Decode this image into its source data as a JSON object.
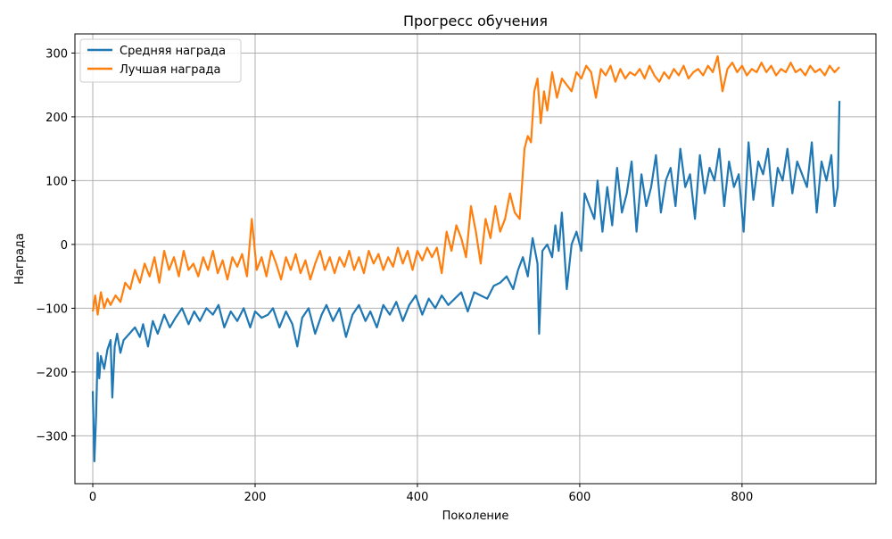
{
  "chart_data": {
    "type": "line",
    "title": "Прогресс обучения",
    "xlabel": "Поколение",
    "ylabel": "Награда",
    "xlim": [
      -22,
      965
    ],
    "ylim": [
      -375,
      330
    ],
    "xticks": [
      0,
      200,
      400,
      600,
      800
    ],
    "yticks": [
      -300,
      -200,
      -100,
      0,
      100,
      200,
      300
    ],
    "grid": true,
    "legend_position": "top-left",
    "series": [
      {
        "name": "Средняя награда",
        "color": "#1f77b4",
        "points": [
          [
            0,
            -230
          ],
          [
            2,
            -340
          ],
          [
            4,
            -270
          ],
          [
            6,
            -170
          ],
          [
            8,
            -210
          ],
          [
            10,
            -175
          ],
          [
            14,
            -195
          ],
          [
            18,
            -165
          ],
          [
            22,
            -150
          ],
          [
            24,
            -240
          ],
          [
            27,
            -160
          ],
          [
            30,
            -140
          ],
          [
            34,
            -170
          ],
          [
            38,
            -150
          ],
          [
            45,
            -140
          ],
          [
            52,
            -130
          ],
          [
            58,
            -145
          ],
          [
            62,
            -125
          ],
          [
            68,
            -160
          ],
          [
            74,
            -120
          ],
          [
            80,
            -140
          ],
          [
            88,
            -110
          ],
          [
            95,
            -130
          ],
          [
            102,
            -115
          ],
          [
            110,
            -100
          ],
          [
            118,
            -125
          ],
          [
            125,
            -105
          ],
          [
            132,
            -120
          ],
          [
            140,
            -100
          ],
          [
            148,
            -110
          ],
          [
            155,
            -95
          ],
          [
            162,
            -130
          ],
          [
            170,
            -105
          ],
          [
            178,
            -120
          ],
          [
            186,
            -100
          ],
          [
            194,
            -130
          ],
          [
            200,
            -105
          ],
          [
            208,
            -115
          ],
          [
            216,
            -110
          ],
          [
            222,
            -100
          ],
          [
            230,
            -130
          ],
          [
            238,
            -105
          ],
          [
            246,
            -125
          ],
          [
            252,
            -160
          ],
          [
            258,
            -115
          ],
          [
            266,
            -100
          ],
          [
            274,
            -140
          ],
          [
            282,
            -110
          ],
          [
            288,
            -95
          ],
          [
            296,
            -120
          ],
          [
            304,
            -100
          ],
          [
            312,
            -145
          ],
          [
            320,
            -110
          ],
          [
            328,
            -95
          ],
          [
            336,
            -120
          ],
          [
            342,
            -105
          ],
          [
            350,
            -130
          ],
          [
            358,
            -95
          ],
          [
            366,
            -110
          ],
          [
            374,
            -90
          ],
          [
            382,
            -120
          ],
          [
            390,
            -95
          ],
          [
            398,
            -80
          ],
          [
            406,
            -110
          ],
          [
            414,
            -85
          ],
          [
            422,
            -100
          ],
          [
            430,
            -80
          ],
          [
            438,
            -95
          ],
          [
            446,
            -85
          ],
          [
            454,
            -75
          ],
          [
            462,
            -105
          ],
          [
            470,
            -75
          ],
          [
            478,
            -80
          ],
          [
            486,
            -85
          ],
          [
            494,
            -65
          ],
          [
            502,
            -60
          ],
          [
            510,
            -50
          ],
          [
            518,
            -70
          ],
          [
            524,
            -40
          ],
          [
            530,
            -20
          ],
          [
            536,
            -50
          ],
          [
            542,
            10
          ],
          [
            548,
            -30
          ],
          [
            550,
            -140
          ],
          [
            554,
            -10
          ],
          [
            560,
            0
          ],
          [
            566,
            -20
          ],
          [
            570,
            30
          ],
          [
            574,
            -10
          ],
          [
            578,
            50
          ],
          [
            584,
            -70
          ],
          [
            590,
            0
          ],
          [
            596,
            20
          ],
          [
            602,
            -10
          ],
          [
            606,
            80
          ],
          [
            612,
            60
          ],
          [
            618,
            40
          ],
          [
            622,
            100
          ],
          [
            628,
            20
          ],
          [
            634,
            90
          ],
          [
            640,
            30
          ],
          [
            646,
            120
          ],
          [
            652,
            50
          ],
          [
            658,
            80
          ],
          [
            664,
            130
          ],
          [
            670,
            20
          ],
          [
            676,
            110
          ],
          [
            682,
            60
          ],
          [
            688,
            90
          ],
          [
            694,
            140
          ],
          [
            700,
            50
          ],
          [
            706,
            100
          ],
          [
            712,
            120
          ],
          [
            718,
            60
          ],
          [
            724,
            150
          ],
          [
            730,
            90
          ],
          [
            736,
            110
          ],
          [
            742,
            40
          ],
          [
            748,
            140
          ],
          [
            754,
            80
          ],
          [
            760,
            120
          ],
          [
            766,
            100
          ],
          [
            772,
            150
          ],
          [
            778,
            60
          ],
          [
            784,
            130
          ],
          [
            790,
            90
          ],
          [
            796,
            110
          ],
          [
            802,
            20
          ],
          [
            808,
            160
          ],
          [
            814,
            70
          ],
          [
            820,
            130
          ],
          [
            826,
            110
          ],
          [
            832,
            150
          ],
          [
            838,
            60
          ],
          [
            844,
            120
          ],
          [
            850,
            100
          ],
          [
            856,
            150
          ],
          [
            862,
            80
          ],
          [
            868,
            130
          ],
          [
            874,
            110
          ],
          [
            880,
            90
          ],
          [
            886,
            160
          ],
          [
            892,
            50
          ],
          [
            898,
            130
          ],
          [
            904,
            100
          ],
          [
            910,
            140
          ],
          [
            914,
            60
          ],
          [
            918,
            90
          ],
          [
            920,
            225
          ]
        ]
      },
      {
        "name": "Лучшая награда",
        "color": "#ff7f0e",
        "points": [
          [
            0,
            -105
          ],
          [
            3,
            -80
          ],
          [
            6,
            -110
          ],
          [
            10,
            -75
          ],
          [
            14,
            -100
          ],
          [
            18,
            -85
          ],
          [
            22,
            -95
          ],
          [
            28,
            -80
          ],
          [
            34,
            -90
          ],
          [
            40,
            -60
          ],
          [
            46,
            -70
          ],
          [
            52,
            -40
          ],
          [
            58,
            -60
          ],
          [
            64,
            -30
          ],
          [
            70,
            -50
          ],
          [
            76,
            -20
          ],
          [
            82,
            -60
          ],
          [
            88,
            -10
          ],
          [
            94,
            -40
          ],
          [
            100,
            -20
          ],
          [
            106,
            -50
          ],
          [
            112,
            -10
          ],
          [
            118,
            -40
          ],
          [
            124,
            -30
          ],
          [
            130,
            -50
          ],
          [
            136,
            -20
          ],
          [
            142,
            -40
          ],
          [
            148,
            -10
          ],
          [
            154,
            -45
          ],
          [
            160,
            -25
          ],
          [
            166,
            -55
          ],
          [
            172,
            -20
          ],
          [
            178,
            -35
          ],
          [
            184,
            -15
          ],
          [
            190,
            -50
          ],
          [
            196,
            40
          ],
          [
            202,
            -40
          ],
          [
            208,
            -20
          ],
          [
            214,
            -50
          ],
          [
            220,
            -10
          ],
          [
            226,
            -30
          ],
          [
            232,
            -55
          ],
          [
            238,
            -20
          ],
          [
            244,
            -40
          ],
          [
            250,
            -15
          ],
          [
            256,
            -45
          ],
          [
            262,
            -25
          ],
          [
            268,
            -55
          ],
          [
            274,
            -30
          ],
          [
            280,
            -10
          ],
          [
            286,
            -40
          ],
          [
            292,
            -20
          ],
          [
            298,
            -45
          ],
          [
            304,
            -20
          ],
          [
            310,
            -35
          ],
          [
            316,
            -10
          ],
          [
            322,
            -40
          ],
          [
            328,
            -20
          ],
          [
            334,
            -45
          ],
          [
            340,
            -10
          ],
          [
            346,
            -30
          ],
          [
            352,
            -15
          ],
          [
            358,
            -40
          ],
          [
            364,
            -20
          ],
          [
            370,
            -35
          ],
          [
            376,
            -5
          ],
          [
            382,
            -30
          ],
          [
            388,
            -10
          ],
          [
            394,
            -40
          ],
          [
            400,
            -10
          ],
          [
            406,
            -25
          ],
          [
            412,
            -5
          ],
          [
            418,
            -20
          ],
          [
            424,
            -5
          ],
          [
            430,
            -45
          ],
          [
            436,
            20
          ],
          [
            442,
            -10
          ],
          [
            448,
            30
          ],
          [
            454,
            10
          ],
          [
            460,
            -20
          ],
          [
            466,
            60
          ],
          [
            472,
            20
          ],
          [
            478,
            -30
          ],
          [
            484,
            40
          ],
          [
            490,
            10
          ],
          [
            496,
            60
          ],
          [
            502,
            20
          ],
          [
            508,
            40
          ],
          [
            514,
            80
          ],
          [
            520,
            50
          ],
          [
            526,
            40
          ],
          [
            532,
            150
          ],
          [
            536,
            170
          ],
          [
            540,
            160
          ],
          [
            544,
            240
          ],
          [
            548,
            260
          ],
          [
            552,
            190
          ],
          [
            556,
            240
          ],
          [
            560,
            210
          ],
          [
            566,
            270
          ],
          [
            572,
            230
          ],
          [
            578,
            260
          ],
          [
            584,
            250
          ],
          [
            590,
            240
          ],
          [
            596,
            270
          ],
          [
            602,
            260
          ],
          [
            608,
            280
          ],
          [
            614,
            270
          ],
          [
            620,
            230
          ],
          [
            626,
            275
          ],
          [
            632,
            265
          ],
          [
            638,
            280
          ],
          [
            644,
            255
          ],
          [
            650,
            275
          ],
          [
            656,
            260
          ],
          [
            662,
            270
          ],
          [
            668,
            265
          ],
          [
            674,
            275
          ],
          [
            680,
            260
          ],
          [
            686,
            280
          ],
          [
            692,
            265
          ],
          [
            698,
            255
          ],
          [
            704,
            270
          ],
          [
            710,
            260
          ],
          [
            716,
            275
          ],
          [
            722,
            265
          ],
          [
            728,
            280
          ],
          [
            734,
            260
          ],
          [
            740,
            270
          ],
          [
            746,
            275
          ],
          [
            752,
            265
          ],
          [
            758,
            280
          ],
          [
            764,
            270
          ],
          [
            770,
            295
          ],
          [
            776,
            240
          ],
          [
            782,
            275
          ],
          [
            788,
            285
          ],
          [
            794,
            270
          ],
          [
            800,
            280
          ],
          [
            806,
            265
          ],
          [
            812,
            275
          ],
          [
            818,
            270
          ],
          [
            824,
            285
          ],
          [
            830,
            270
          ],
          [
            836,
            280
          ],
          [
            842,
            265
          ],
          [
            848,
            275
          ],
          [
            854,
            270
          ],
          [
            860,
            285
          ],
          [
            866,
            270
          ],
          [
            872,
            275
          ],
          [
            878,
            265
          ],
          [
            884,
            280
          ],
          [
            890,
            270
          ],
          [
            896,
            275
          ],
          [
            902,
            265
          ],
          [
            908,
            280
          ],
          [
            914,
            270
          ],
          [
            920,
            278
          ]
        ]
      }
    ]
  }
}
